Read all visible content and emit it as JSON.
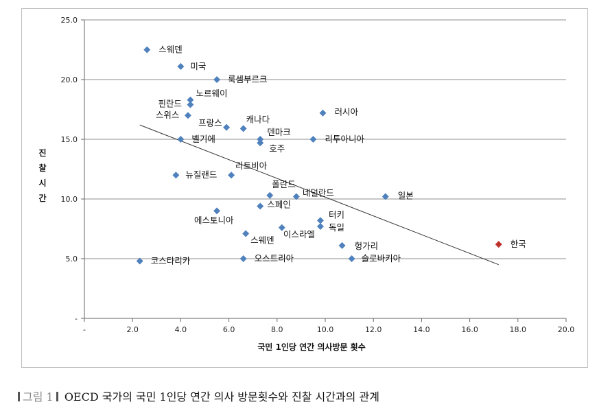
{
  "chart_data": {
    "type": "scatter",
    "xlabel": "국민 1인당 연간 의사방문 횟수",
    "ylabel": "진찰시간",
    "xlim": [
      0,
      20
    ],
    "ylim": [
      0,
      25
    ],
    "x_ticks": [
      "-",
      "2.0",
      "4.0",
      "6.0",
      "8.0",
      "10.0",
      "12.0",
      "14.0",
      "16.0",
      "18.0",
      "20.0"
    ],
    "y_ticks": [
      "-",
      "5.0",
      "10.0",
      "15.0",
      "20.0",
      "25.0"
    ],
    "grid": "horizontal",
    "points": [
      {
        "label": "스웨덴",
        "x": 2.6,
        "y": 22.5,
        "color": "#4f81bd"
      },
      {
        "label": "미국",
        "x": 4.0,
        "y": 21.1,
        "color": "#4f81bd"
      },
      {
        "label": "룩셈부르크",
        "x": 5.5,
        "y": 20.0,
        "color": "#4f81bd"
      },
      {
        "label": "노르웨이",
        "x": 4.4,
        "y": 18.3,
        "color": "#4f81bd"
      },
      {
        "label": "핀란드",
        "x": 4.4,
        "y": 17.9,
        "color": "#4f81bd"
      },
      {
        "label": "스위스",
        "x": 4.3,
        "y": 17.0,
        "color": "#4f81bd"
      },
      {
        "label": "러시아",
        "x": 9.9,
        "y": 17.2,
        "color": "#4f81bd"
      },
      {
        "label": "프랑스",
        "x": 5.9,
        "y": 16.0,
        "color": "#4f81bd"
      },
      {
        "label": "캐나다",
        "x": 6.6,
        "y": 15.9,
        "color": "#4f81bd"
      },
      {
        "label": "덴마크",
        "x": 7.3,
        "y": 15.0,
        "color": "#4f81bd"
      },
      {
        "label": "호주",
        "x": 7.3,
        "y": 14.7,
        "color": "#4f81bd"
      },
      {
        "label": "벨기에",
        "x": 4.0,
        "y": 15.0,
        "color": "#4f81bd"
      },
      {
        "label": "리투아니아",
        "x": 9.5,
        "y": 15.0,
        "color": "#4f81bd"
      },
      {
        "label": "뉴질랜드",
        "x": 3.8,
        "y": 12.0,
        "color": "#4f81bd"
      },
      {
        "label": "라트비아",
        "x": 6.1,
        "y": 12.0,
        "color": "#4f81bd"
      },
      {
        "label": "폴란드",
        "x": 7.7,
        "y": 10.3,
        "color": "#4f81bd"
      },
      {
        "label": "네덜란드",
        "x": 8.8,
        "y": 10.2,
        "color": "#4f81bd"
      },
      {
        "label": "일본",
        "x": 12.5,
        "y": 10.2,
        "color": "#4f81bd"
      },
      {
        "label": "스페인",
        "x": 7.3,
        "y": 9.4,
        "color": "#4f81bd"
      },
      {
        "label": "에스토니아",
        "x": 5.5,
        "y": 9.0,
        "color": "#4f81bd"
      },
      {
        "label": "터키",
        "x": 9.8,
        "y": 8.2,
        "color": "#4f81bd"
      },
      {
        "label": "독일",
        "x": 9.8,
        "y": 7.7,
        "color": "#4f81bd"
      },
      {
        "label": "이스라엘",
        "x": 8.2,
        "y": 7.6,
        "color": "#4f81bd"
      },
      {
        "label": "스웨덴",
        "x": 6.7,
        "y": 7.1,
        "color": "#4f81bd"
      },
      {
        "label": "헝가리",
        "x": 10.7,
        "y": 6.1,
        "color": "#4f81bd"
      },
      {
        "label": "한국",
        "x": 17.2,
        "y": 6.2,
        "color": "#c0302a"
      },
      {
        "label": "코스타리카",
        "x": 2.3,
        "y": 4.8,
        "color": "#4f81bd"
      },
      {
        "label": "오스트리아",
        "x": 6.6,
        "y": 5.0,
        "color": "#4f81bd"
      },
      {
        "label": "슬로바키아",
        "x": 11.1,
        "y": 5.0,
        "color": "#4f81bd"
      }
    ],
    "trendline": {
      "x": [
        2.3,
        17.2
      ],
      "y": [
        16.2,
        4.5
      ]
    }
  },
  "caption": {
    "prefix": "그림 1",
    "text": "OECD 국가의 국민 1인당 연간 의사 방문횟수와 진찰 시간과의 관계"
  }
}
